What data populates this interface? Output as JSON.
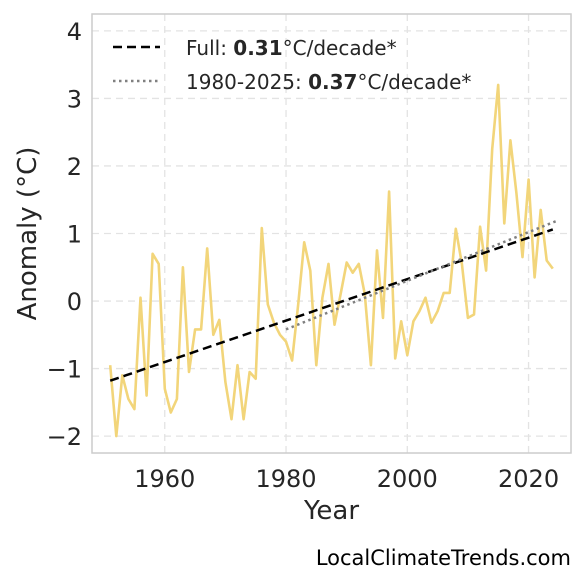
{
  "chart_data": {
    "type": "line",
    "xlabel": "Year",
    "ylabel": "Anomaly (°C)",
    "xlim": [
      1948,
      2027
    ],
    "ylim": [
      -2.25,
      4.25
    ],
    "xticks": [
      1960,
      1980,
      2000,
      2020
    ],
    "yticks": [
      -2,
      -1,
      0,
      1,
      2,
      3,
      4
    ],
    "grid": true,
    "legend_position": "top-left",
    "series": [
      {
        "style": "solid",
        "color": "#f2d57a",
        "x": [
          1951,
          1952,
          1953,
          1954,
          1955,
          1956,
          1957,
          1958,
          1959,
          1960,
          1961,
          1962,
          1963,
          1964,
          1965,
          1966,
          1967,
          1968,
          1969,
          1970,
          1971,
          1972,
          1973,
          1974,
          1975,
          1976,
          1977,
          1978,
          1979,
          1980,
          1981,
          1982,
          1983,
          1984,
          1985,
          1986,
          1987,
          1988,
          1989,
          1990,
          1991,
          1992,
          1993,
          1994,
          1995,
          1996,
          1997,
          1998,
          1999,
          2000,
          2001,
          2002,
          2003,
          2004,
          2005,
          2006,
          2007,
          2008,
          2009,
          2010,
          2011,
          2012,
          2013,
          2014,
          2015,
          2016,
          2017,
          2018,
          2019,
          2020,
          2021,
          2022,
          2023,
          2024
        ],
        "y": [
          -0.95,
          -2.0,
          -1.1,
          -1.45,
          -1.6,
          0.05,
          -1.4,
          0.7,
          0.55,
          -1.3,
          -1.65,
          -1.45,
          0.5,
          -1.05,
          -0.42,
          -0.42,
          0.78,
          -0.5,
          -0.28,
          -1.2,
          -1.75,
          -0.95,
          -1.75,
          -1.05,
          -1.15,
          1.08,
          -0.05,
          -0.32,
          -0.5,
          -0.6,
          -0.88,
          -0.05,
          0.87,
          0.45,
          -0.95,
          0.05,
          0.55,
          -0.35,
          0.1,
          0.57,
          0.42,
          0.55,
          0.1,
          -0.95,
          0.75,
          -0.25,
          1.62,
          -0.85,
          -0.3,
          -0.8,
          -0.3,
          -0.15,
          0.05,
          -0.32,
          -0.15,
          0.12,
          0.12,
          1.07,
          0.55,
          -0.25,
          -0.2,
          1.1,
          0.45,
          2.25,
          3.2,
          1.15,
          2.38,
          1.6,
          0.65,
          1.8,
          0.35,
          1.35,
          0.6,
          0.48
        ]
      },
      {
        "style": "dashed",
        "color": "#000000",
        "x": [
          1951,
          2024
        ],
        "y": [
          -1.18,
          1.06
        ],
        "legend_label": "Full: ",
        "legend_value": "0.31",
        "legend_unit": "°C/decade*"
      },
      {
        "style": "dotted",
        "color": "#808080",
        "x": [
          1980,
          2025
        ],
        "y": [
          -0.42,
          1.2
        ],
        "legend_label": "1980-2025: ",
        "legend_value": "0.37",
        "legend_unit": "°C/decade*"
      }
    ]
  },
  "credit": "LocalClimateTrends.com"
}
